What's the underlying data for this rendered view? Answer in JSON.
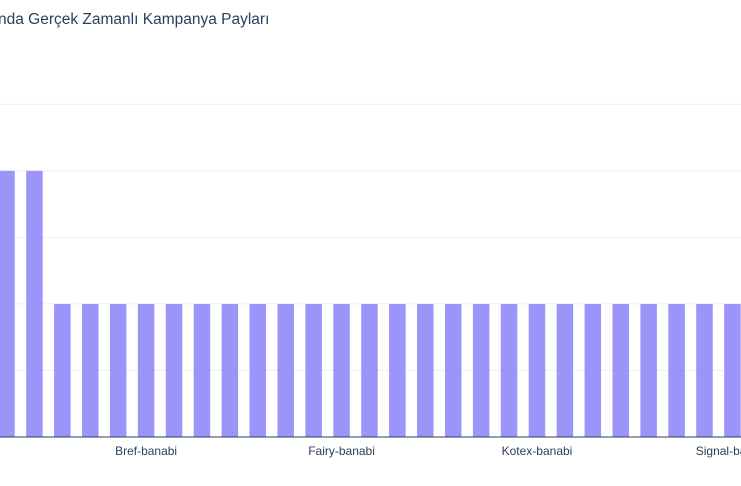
{
  "chart_data": {
    "type": "bar",
    "title": "nda Gerçek Zamanlı Kampanya Payları",
    "xlabel": "",
    "ylabel": "",
    "categories": [
      "",
      "",
      "",
      "",
      "",
      "Bref-banabi",
      "",
      "",
      "",
      "",
      "",
      "",
      "Fairy-banabi",
      "",
      "",
      "",
      "",
      "",
      "",
      "Kotex-banabi",
      "",
      "",
      "",
      "",
      "",
      "",
      "Signal-banabi"
    ],
    "values": [
      5.2,
      5.2,
      2.6,
      2.6,
      2.6,
      2.6,
      2.6,
      2.6,
      2.6,
      2.6,
      2.6,
      2.6,
      2.6,
      2.6,
      2.6,
      2.6,
      2.6,
      2.6,
      2.6,
      2.6,
      2.6,
      2.6,
      2.6,
      2.6,
      2.6,
      2.6,
      2.6
    ],
    "ylim": [
      0,
      7.6
    ],
    "grid": true,
    "bar_color": "#9b94f9",
    "grid_color": "#ebeff5",
    "axis_color": "#2a3f5f"
  }
}
